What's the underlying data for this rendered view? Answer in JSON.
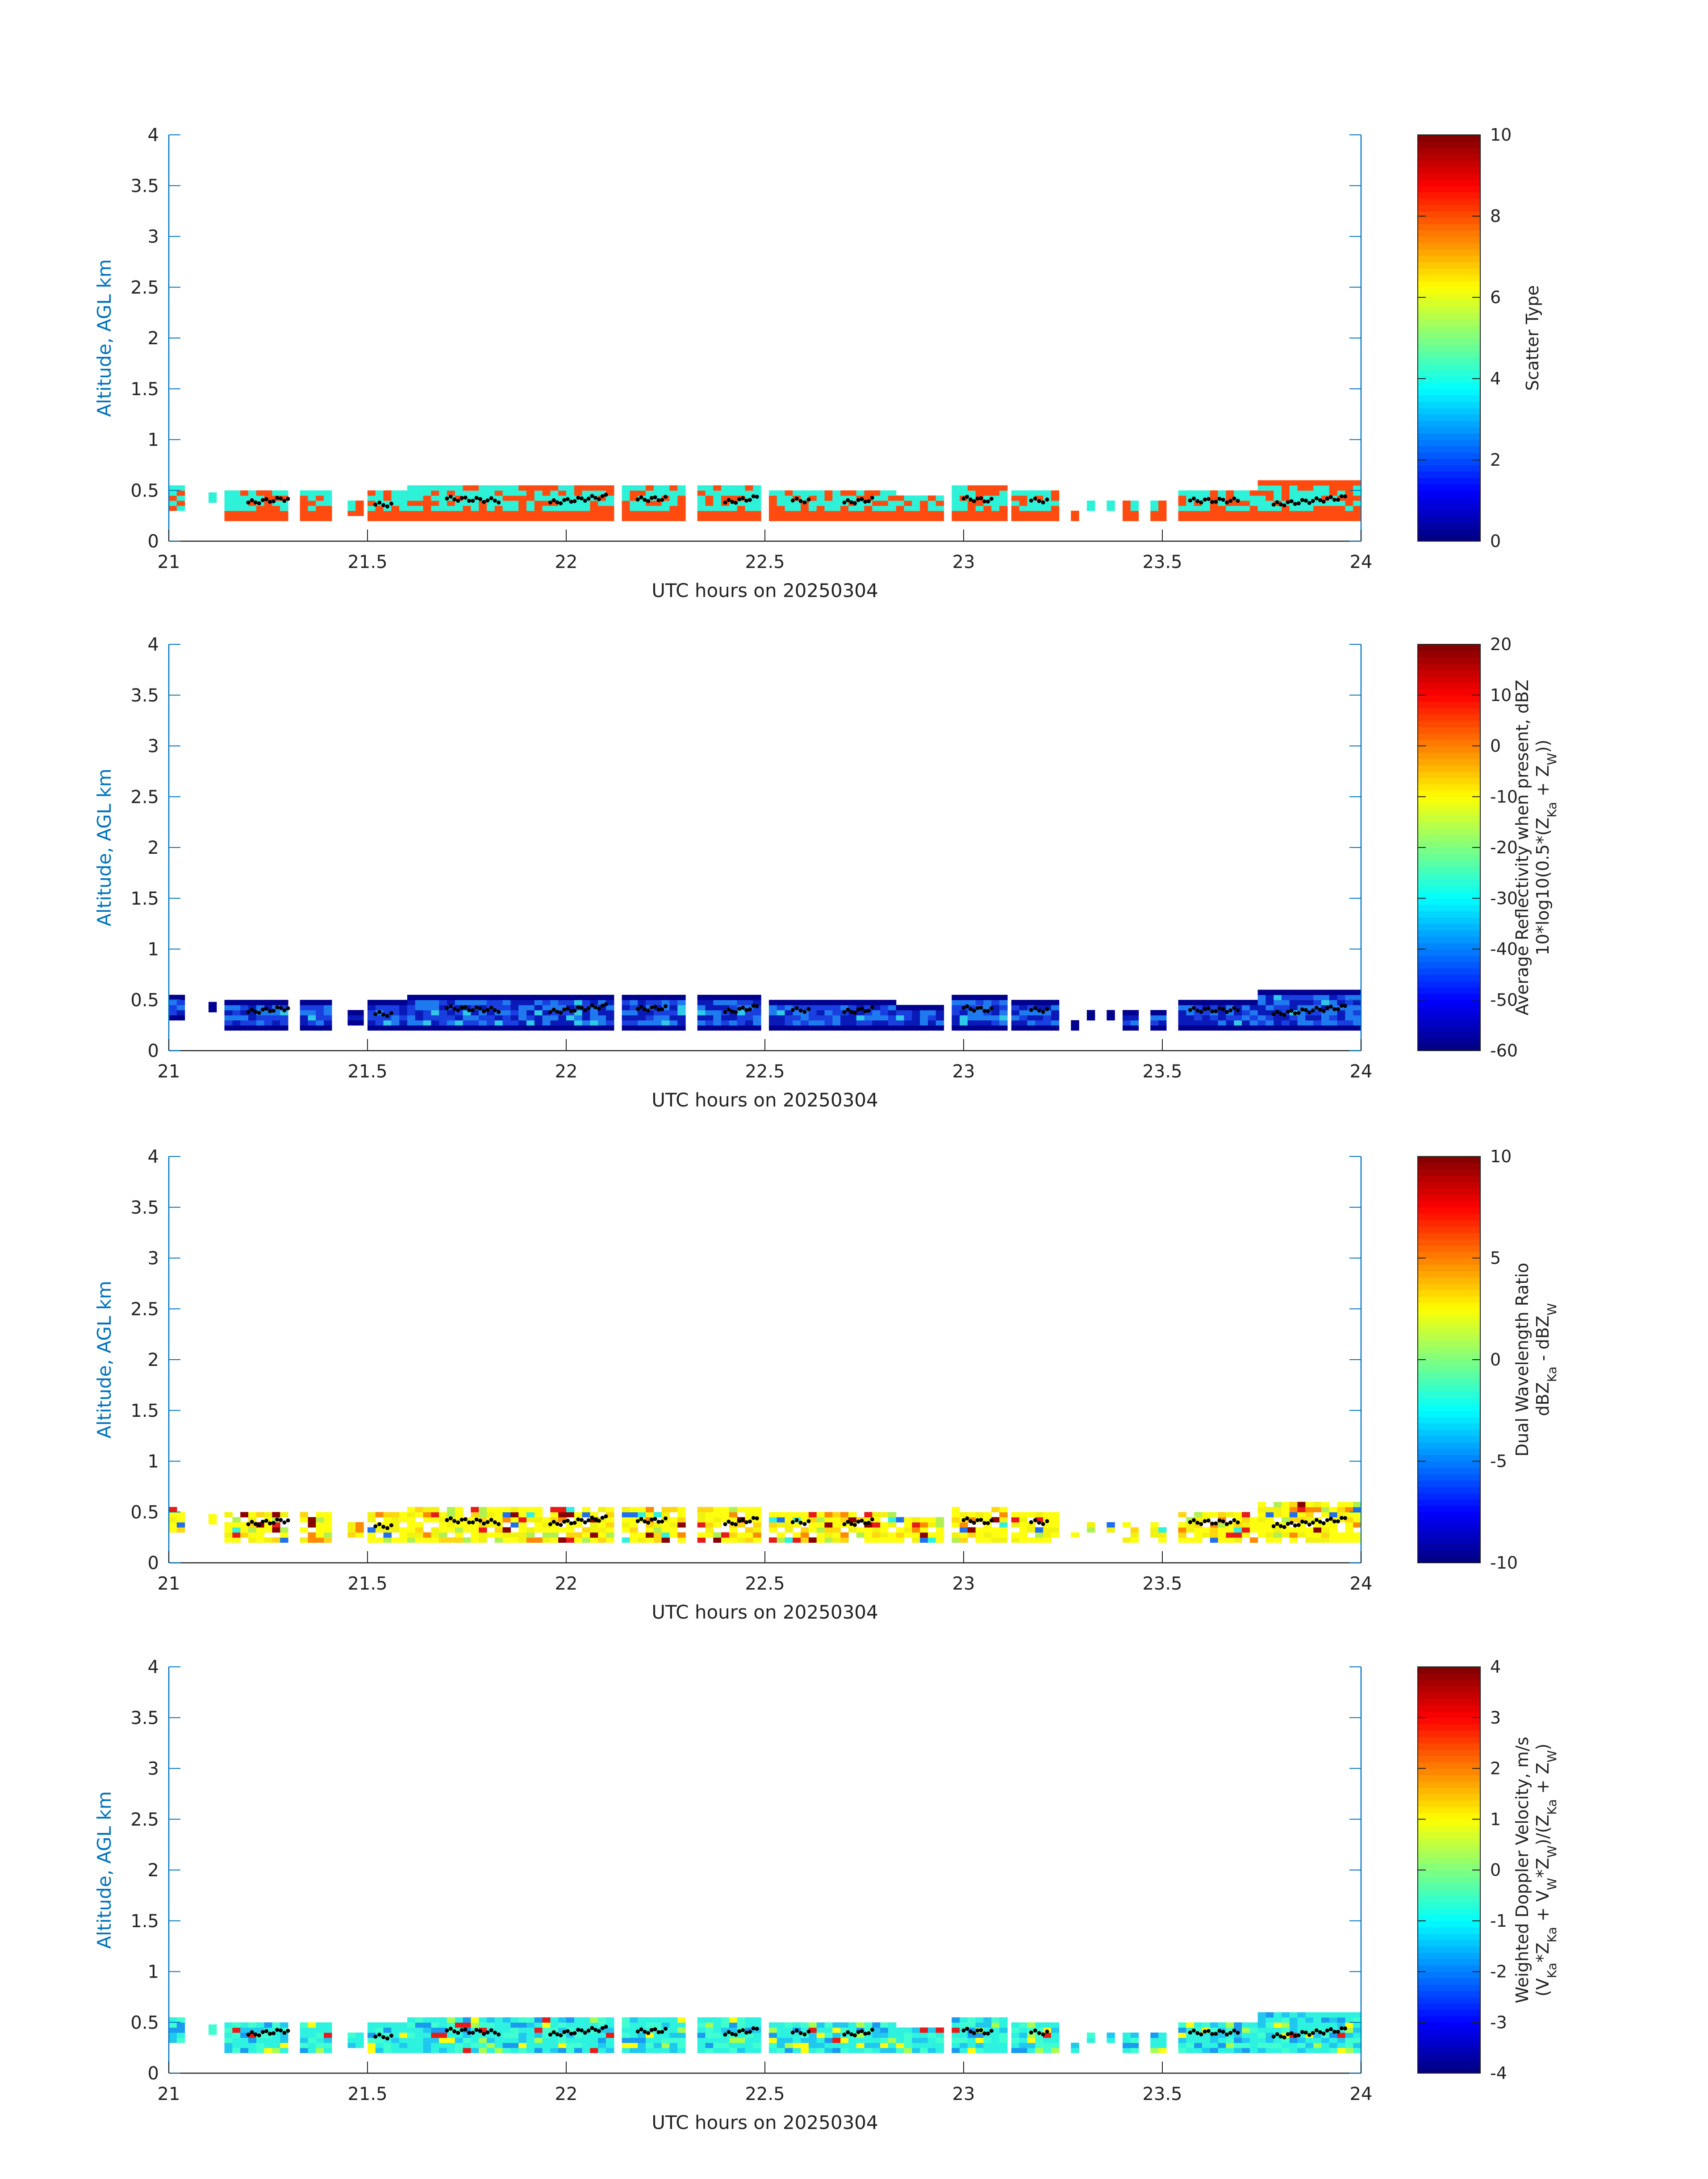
{
  "chart_data": [
    {
      "type": "heatmap",
      "title": "",
      "xlabel": "UTC hours on 20250304",
      "ylabel": "Altitude, AGL km",
      "xlim": [
        21,
        24
      ],
      "ylim": [
        0,
        4
      ],
      "x_ticks": [
        "21",
        "21.5",
        "22",
        "22.5",
        "23",
        "23.5",
        "24"
      ],
      "y_ticks": [
        "0",
        "0.5",
        "1",
        "1.5",
        "2",
        "2.5",
        "3",
        "3.5",
        "4"
      ],
      "colorbar": {
        "label_lines": [
          "Scatter Type"
        ],
        "range": [
          0,
          10
        ],
        "ticks": [
          "0",
          "2",
          "4",
          "6",
          "8",
          "10"
        ]
      },
      "palette": [
        "#ff4b10",
        "#2ef2d8"
      ],
      "point_color": "#000000"
    },
    {
      "type": "heatmap",
      "title": "",
      "xlabel": "UTC hours on 20250304",
      "ylabel": "Altitude, AGL km",
      "xlim": [
        21,
        24
      ],
      "ylim": [
        0,
        4
      ],
      "x_ticks": [
        "21",
        "21.5",
        "22",
        "22.5",
        "23",
        "23.5",
        "24"
      ],
      "y_ticks": [
        "0",
        "0.5",
        "1",
        "1.5",
        "2",
        "2.5",
        "3",
        "3.5",
        "4"
      ],
      "colorbar": {
        "label_lines": [
          "Average Reflectivity when present, dBZ",
          "10*log10(0.5*(Z_Ka + Z_W))"
        ],
        "range": [
          -60,
          20
        ],
        "ticks": [
          "-60",
          "-50",
          "-40",
          "-30",
          "-20",
          "-10",
          "0",
          "10",
          "20"
        ]
      },
      "palette": [
        "#00008f",
        "#0a1ab8",
        "#1a3fe0",
        "#1f7af0",
        "#2ec8e8"
      ],
      "point_color": "#000000"
    },
    {
      "type": "heatmap",
      "title": "",
      "xlabel": "UTC hours on 20250304",
      "ylabel": "Altitude, AGL km",
      "xlim": [
        21,
        24
      ],
      "ylim": [
        0,
        4
      ],
      "x_ticks": [
        "21",
        "21.5",
        "22",
        "22.5",
        "23",
        "23.5",
        "24"
      ],
      "y_ticks": [
        "0",
        "0.5",
        "1",
        "1.5",
        "2",
        "2.5",
        "3",
        "3.5",
        "4"
      ],
      "colorbar": {
        "label_lines": [
          "Dual Wavelength Ratio",
          "dBZ_Ka - dBZ_W"
        ],
        "range": [
          -10,
          10
        ],
        "ticks": [
          "-10",
          "-5",
          "0",
          "5",
          "10"
        ]
      },
      "palette": [
        "#ffff10",
        "#f2f210",
        "#ffd610",
        "#b0f050",
        "#ff8a00",
        "#e81a1a",
        "#8a0000",
        "#30f0e0",
        "#1f6ff0"
      ],
      "point_color": "#000000"
    },
    {
      "type": "heatmap",
      "title": "",
      "xlabel": "UTC hours on 20250304",
      "ylabel": "Altitude, AGL km",
      "xlim": [
        21,
        24
      ],
      "ylim": [
        0,
        4
      ],
      "x_ticks": [
        "21",
        "21.5",
        "22",
        "22.5",
        "23",
        "23.5",
        "24"
      ],
      "y_ticks": [
        "0",
        "0.5",
        "1",
        "1.5",
        "2",
        "2.5",
        "3",
        "3.5",
        "4"
      ],
      "colorbar": {
        "label_lines": [
          "Weighted Doppler Velocity, m/s",
          "(V_Ka*Z_Ka + V_W*Z_W)/(Z_Ka + Z_W)"
        ],
        "range": [
          -4,
          4
        ],
        "ticks": [
          "-4",
          "-3",
          "-2",
          "-1",
          "0",
          "1",
          "2",
          "3",
          "4"
        ]
      },
      "palette": [
        "#2ef2e0",
        "#40ffd0",
        "#20c8f0",
        "#1a9af0",
        "#a8ff50",
        "#ffff10",
        "#e81a1a"
      ],
      "point_color": "#000000"
    }
  ],
  "altitude_coverage": [
    [
      21.0,
      21.03,
      0.3,
      0.55
    ],
    [
      21.1,
      21.12,
      0.38,
      0.47
    ],
    [
      21.14,
      21.29,
      0.2,
      0.5
    ],
    [
      21.33,
      21.41,
      0.2,
      0.47
    ],
    [
      21.45,
      21.49,
      0.25,
      0.38
    ],
    [
      21.5,
      21.6,
      0.2,
      0.47
    ],
    [
      21.6,
      21.84,
      0.2,
      0.52
    ],
    [
      21.84,
      22.12,
      0.2,
      0.52
    ],
    [
      22.14,
      22.29,
      0.2,
      0.52
    ],
    [
      22.33,
      22.49,
      0.2,
      0.52
    ],
    [
      22.51,
      22.67,
      0.2,
      0.48
    ],
    [
      22.67,
      22.82,
      0.2,
      0.48
    ],
    [
      22.83,
      22.95,
      0.2,
      0.45
    ],
    [
      22.97,
      23.1,
      0.2,
      0.52
    ],
    [
      23.12,
      23.23,
      0.2,
      0.5
    ],
    [
      23.27,
      23.29,
      0.2,
      0.27
    ],
    [
      23.31,
      23.33,
      0.3,
      0.36
    ],
    [
      23.36,
      23.38,
      0.3,
      0.36
    ],
    [
      23.4,
      23.43,
      0.2,
      0.36
    ],
    [
      23.47,
      23.51,
      0.2,
      0.4
    ],
    [
      23.54,
      23.73,
      0.2,
      0.47
    ],
    [
      23.74,
      24.0,
      0.2,
      0.6
    ]
  ],
  "marker_traces": [
    [
      21.2,
      21.3,
      0.38,
      0.42
    ],
    [
      21.52,
      21.56,
      0.36,
      0.36
    ],
    [
      21.7,
      21.83,
      0.42,
      0.4
    ],
    [
      21.96,
      22.1,
      0.38,
      0.44
    ],
    [
      22.18,
      22.25,
      0.41,
      0.42
    ],
    [
      22.4,
      22.48,
      0.38,
      0.43
    ],
    [
      22.57,
      22.61,
      0.4,
      0.4
    ],
    [
      22.7,
      22.77,
      0.38,
      0.41
    ],
    [
      23.0,
      23.07,
      0.42,
      0.4
    ],
    [
      23.17,
      23.21,
      0.4,
      0.4
    ],
    [
      23.57,
      23.69,
      0.4,
      0.4
    ],
    [
      23.78,
      23.96,
      0.36,
      0.43
    ]
  ]
}
